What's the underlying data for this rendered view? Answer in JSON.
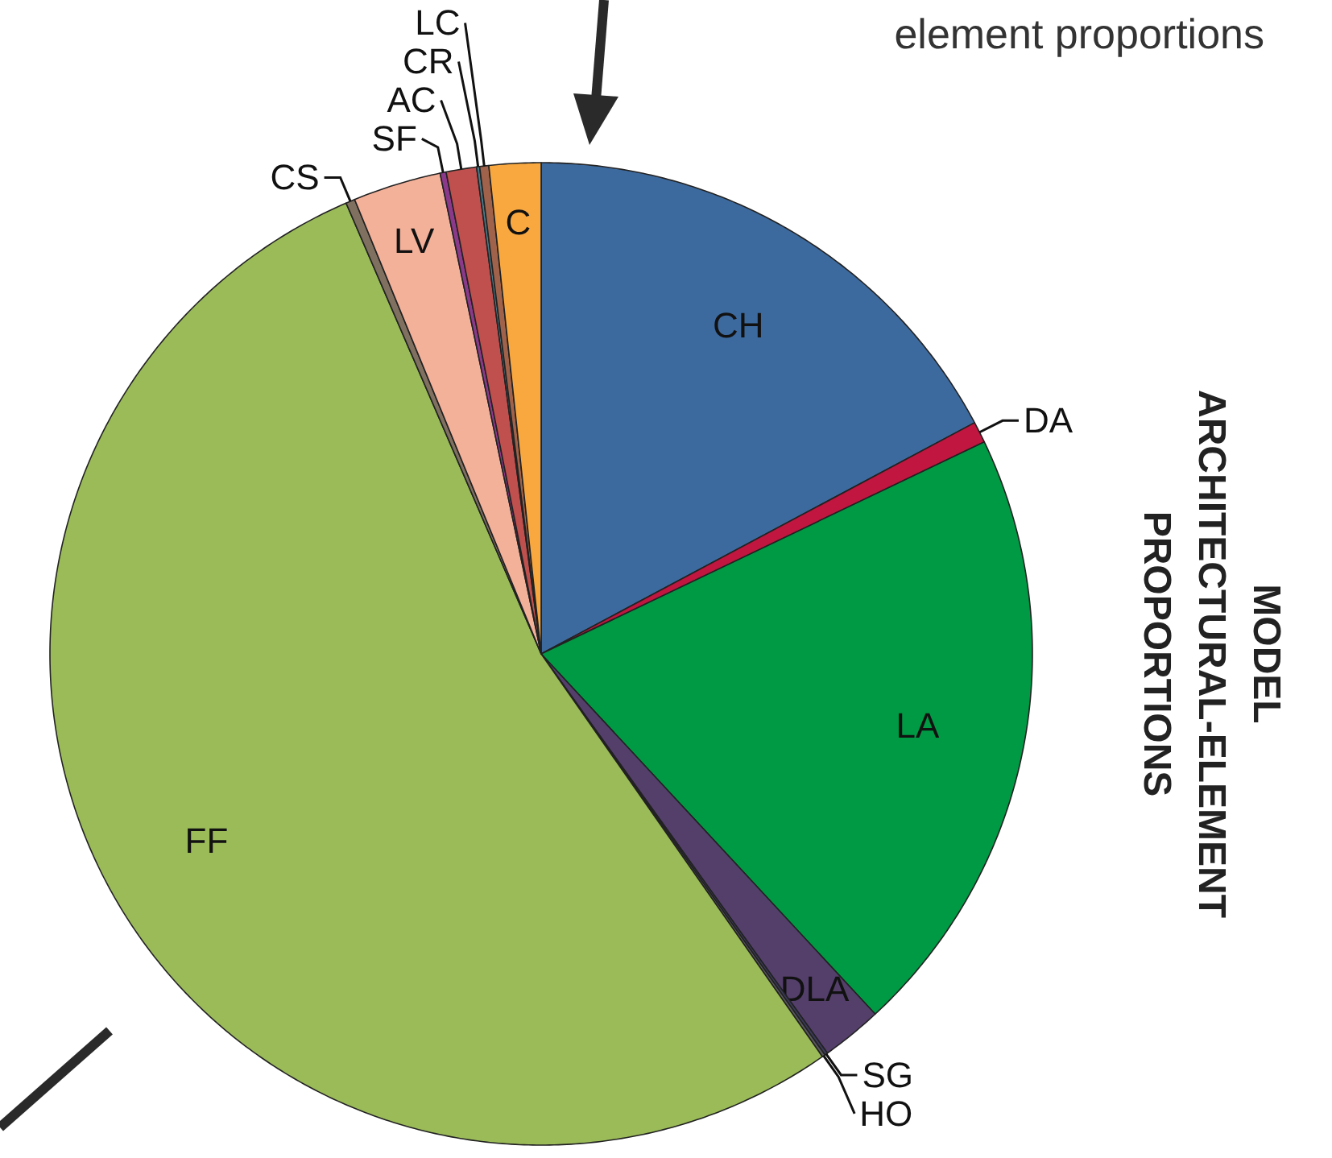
{
  "chart_data": {
    "type": "pie",
    "title": "MODEL\nARCHITECTURAL-ELEMENT\nPROPORTIONS",
    "categories": [
      "CH",
      "DA",
      "LA",
      "DLA",
      "SG",
      "HO",
      "FF",
      "CS",
      "LV",
      "SF",
      "AC",
      "CR",
      "LC",
      "C"
    ],
    "values": [
      17.2,
      0.7,
      20.2,
      2.0,
      0.1,
      0.1,
      53.2,
      0.3,
      2.9,
      0.2,
      1.0,
      0.1,
      0.3,
      1.7
    ],
    "colors": [
      "#3d6a9e",
      "#c0163f",
      "#009a44",
      "#543f6b",
      "#3a3a5a",
      "#5a5a5a",
      "#9bbb59",
      "#7f7060",
      "#f4b19a",
      "#8b3a8b",
      "#c0504d",
      "#4a7a8a",
      "#a0624a",
      "#f8a83f"
    ],
    "annotations": [
      "element proportions"
    ]
  }
}
